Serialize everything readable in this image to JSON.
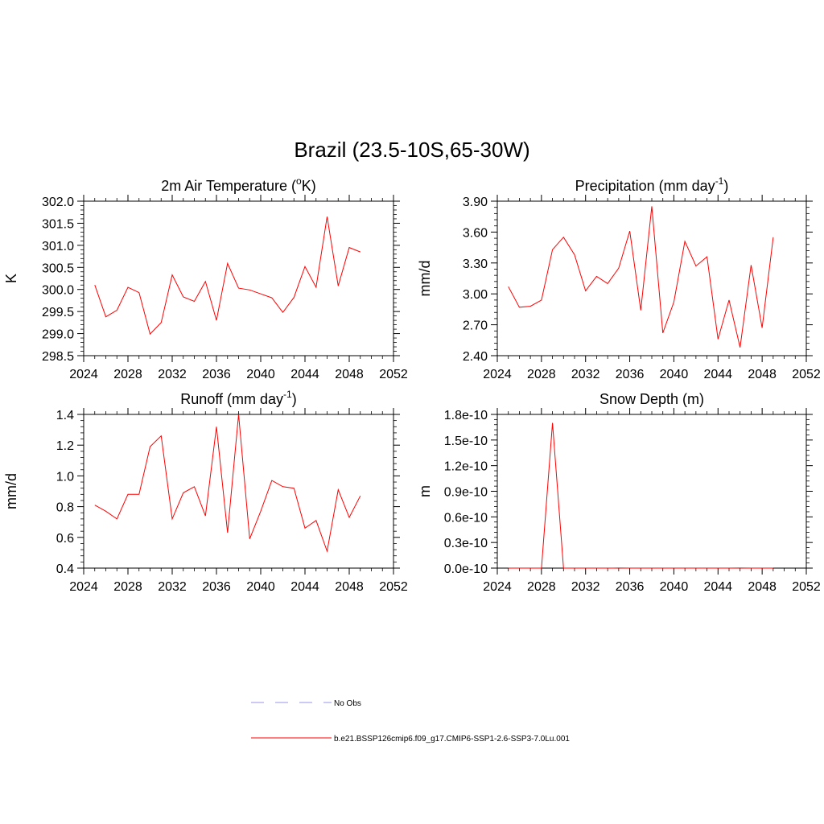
{
  "page_title": "Brazil (23.5-10S,65-30W)",
  "legend": {
    "obs_label": "No Obs",
    "obs_color": "#aaaaee",
    "model_label": "b.e21.BSSP126cmip6.f09_g17.CMIP6-SSP1-2.6-SSP3-7.0Lu.001",
    "model_color": "#ff0000"
  },
  "chart_data": [
    {
      "type": "line",
      "title": "2m Air Temperature (",
      "title_sup": "o",
      "title_after": "K)",
      "ylabel": "K",
      "xlim": [
        2024,
        2052
      ],
      "ylim": [
        298.5,
        302.0
      ],
      "xticks": [
        2024,
        2028,
        2032,
        2036,
        2040,
        2044,
        2048,
        2052
      ],
      "yticks": [
        "298.5",
        "299.0",
        "299.5",
        "300.0",
        "300.5",
        "301.0",
        "301.5",
        "302.0"
      ],
      "x": [
        2025,
        2026,
        2027,
        2028,
        2029,
        2030,
        2031,
        2032,
        2033,
        2034,
        2035,
        2036,
        2037,
        2038,
        2039,
        2040,
        2041,
        2042,
        2043,
        2044,
        2045,
        2046,
        2047,
        2048,
        2049
      ],
      "series": [
        {
          "color": "#ff0000",
          "values": [
            300.1,
            299.38,
            299.53,
            300.05,
            299.93,
            298.99,
            299.25,
            300.33,
            299.83,
            299.73,
            300.18,
            299.3,
            300.59,
            300.03,
            299.99,
            299.9,
            299.81,
            299.48,
            299.82,
            300.52,
            300.05,
            301.65,
            300.08,
            300.95,
            300.85
          ]
        }
      ]
    },
    {
      "type": "line",
      "title": "Precipitation (mm day",
      "title_sup": "-1",
      "title_after": ")",
      "ylabel": "mm/d",
      "xlim": [
        2024,
        2052
      ],
      "ylim": [
        2.4,
        3.9
      ],
      "xticks": [
        2024,
        2028,
        2032,
        2036,
        2040,
        2044,
        2048,
        2052
      ],
      "yticks": [
        "2.40",
        "2.70",
        "3.00",
        "3.30",
        "3.60",
        "3.90"
      ],
      "x": [
        2025,
        2026,
        2027,
        2028,
        2029,
        2030,
        2031,
        2032,
        2033,
        2034,
        2035,
        2036,
        2037,
        2038,
        2039,
        2040,
        2041,
        2042,
        2043,
        2044,
        2045,
        2046,
        2047,
        2048,
        2049
      ],
      "series": [
        {
          "color": "#ff0000",
          "values": [
            3.07,
            2.87,
            2.88,
            2.94,
            3.43,
            3.55,
            3.38,
            3.03,
            3.17,
            3.1,
            3.25,
            3.61,
            2.84,
            3.85,
            2.62,
            2.92,
            3.51,
            3.27,
            3.36,
            2.56,
            2.94,
            2.48,
            3.28,
            2.67,
            3.55
          ]
        }
      ]
    },
    {
      "type": "line",
      "title": "Runoff (mm day",
      "title_sup": "-1",
      "title_after": ")",
      "ylabel": "mm/d",
      "xlim": [
        2024,
        2052
      ],
      "ylim": [
        0.4,
        1.4
      ],
      "xticks": [
        2024,
        2028,
        2032,
        2036,
        2040,
        2044,
        2048,
        2052
      ],
      "yticks": [
        "0.4",
        "0.6",
        "0.8",
        "1.0",
        "1.2",
        "1.4"
      ],
      "x": [
        2025,
        2026,
        2027,
        2028,
        2029,
        2030,
        2031,
        2032,
        2033,
        2034,
        2035,
        2036,
        2037,
        2038,
        2039,
        2040,
        2041,
        2042,
        2043,
        2044,
        2045,
        2046,
        2047,
        2048,
        2049
      ],
      "series": [
        {
          "color": "#ff0000",
          "values": [
            0.81,
            0.77,
            0.72,
            0.88,
            0.88,
            1.19,
            1.26,
            0.72,
            0.89,
            0.93,
            0.74,
            1.32,
            0.63,
            1.4,
            0.59,
            0.77,
            0.97,
            0.93,
            0.92,
            0.66,
            0.71,
            0.51,
            0.91,
            0.73,
            0.87
          ]
        }
      ]
    },
    {
      "type": "line",
      "title": "Snow Depth (m)",
      "title_sup": "",
      "title_after": "",
      "ylabel": "m",
      "xlim": [
        2024,
        2052
      ],
      "ylim": [
        0,
        1.8e-10
      ],
      "xticks": [
        2024,
        2028,
        2032,
        2036,
        2040,
        2044,
        2048,
        2052
      ],
      "yticks": [
        "0.0e-10",
        "0.3e-10",
        "0.6e-10",
        "0.9e-10",
        "1.2e-10",
        "1.5e-10",
        "1.8e-10"
      ],
      "x": [
        2025,
        2026,
        2027,
        2028,
        2029,
        2030,
        2031,
        2032,
        2033,
        2034,
        2035,
        2036,
        2037,
        2038,
        2039,
        2040,
        2041,
        2042,
        2043,
        2044,
        2045,
        2046,
        2047,
        2048,
        2049
      ],
      "series": [
        {
          "color": "#ff0000",
          "values": [
            0,
            0,
            0,
            0,
            1.7e-10,
            0,
            0,
            0,
            0,
            0,
            1e-13,
            0,
            0,
            0,
            0,
            0,
            0,
            0,
            0,
            0,
            0,
            1e-13,
            0,
            0,
            0
          ]
        }
      ]
    }
  ]
}
